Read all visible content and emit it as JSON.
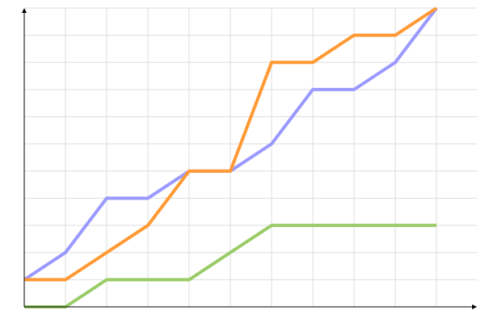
{
  "chart_data": {
    "type": "line",
    "title": "",
    "xlabel": "",
    "ylabel": "",
    "x": [
      0,
      1,
      2,
      3,
      4,
      5,
      6,
      7,
      8,
      9,
      10
    ],
    "xlim": [
      0,
      11
    ],
    "ylim": [
      0,
      11
    ],
    "grid": true,
    "legend": "none",
    "series": [
      {
        "color": "#9999ff",
        "values": [
          1,
          2,
          4,
          4,
          5,
          5,
          6,
          8,
          8,
          9,
          11
        ]
      },
      {
        "color": "#ff9933",
        "values": [
          1,
          1,
          2,
          3,
          5,
          5,
          9,
          9,
          10,
          10,
          11
        ]
      },
      {
        "color": "#99cc66",
        "values": [
          0,
          0,
          1,
          1,
          1,
          2,
          3,
          3,
          3,
          3,
          3
        ]
      }
    ]
  }
}
